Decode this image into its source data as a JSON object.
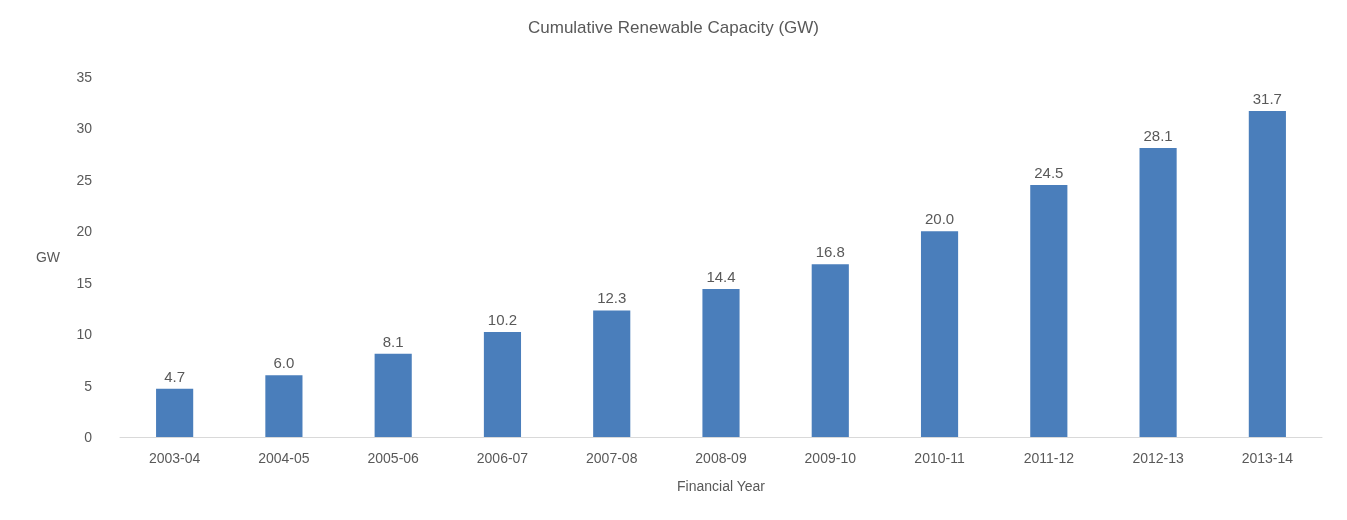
{
  "chart_data": {
    "type": "bar",
    "title": "Cumulative Renewable Capacity (GW)",
    "xlabel": "Financial Year",
    "ylabel": "GW",
    "categories": [
      "2003-04",
      "2004-05",
      "2005-06",
      "2006-07",
      "2007-08",
      "2008-09",
      "2009-10",
      "2010-11",
      "2011-12",
      "2012-13",
      "2013-14"
    ],
    "values": [
      4.7,
      6.0,
      8.1,
      10.2,
      12.3,
      14.4,
      16.8,
      20.0,
      24.5,
      28.1,
      31.7
    ],
    "value_labels": [
      "4.7",
      "6.0",
      "8.1",
      "10.2",
      "12.3",
      "14.4",
      "16.8",
      "20.0",
      "24.5",
      "28.1",
      "31.7"
    ],
    "color": "#4a7ebb",
    "ylim": [
      0,
      35
    ],
    "yticks": [
      0,
      5,
      10,
      15,
      20,
      25,
      30,
      35
    ],
    "grid": false
  }
}
